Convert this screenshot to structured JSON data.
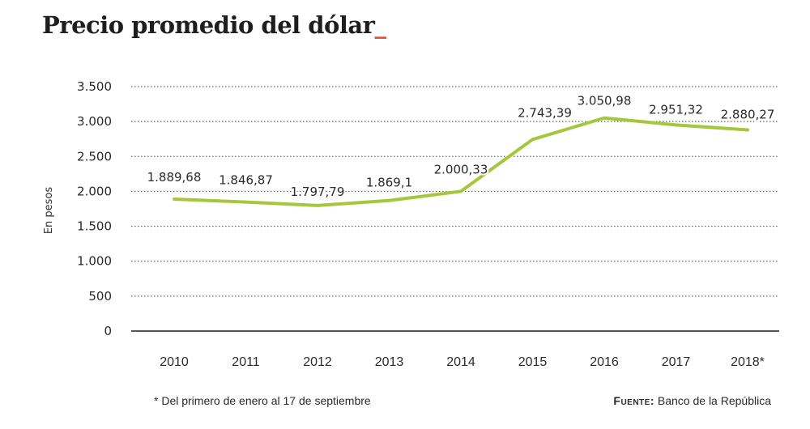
{
  "title": "Precio promedio del dólar",
  "title_accent": "_",
  "colors": {
    "line": "#a5c73e",
    "accent": "#e8542f",
    "grid": "#666666",
    "text": "#2a2a2a"
  },
  "footnote": "* Del primero de enero al 17 de septiembre",
  "source": {
    "label": "Fuente:",
    "value": " Banco de la República"
  },
  "chart_data": {
    "type": "line",
    "title": "Precio promedio del dólar",
    "xlabel": "",
    "ylabel": "En pesos",
    "categories": [
      "2010",
      "2011",
      "2012",
      "2013",
      "2014",
      "2015",
      "2016",
      "2017",
      "2018*"
    ],
    "series": [
      {
        "name": "Precio promedio del dólar",
        "values": [
          1889.68,
          1846.87,
          1797.79,
          1869.1,
          2000.33,
          2743.39,
          3050.98,
          2951.32,
          2880.27
        ],
        "labels": [
          "1.889,68",
          "1.846,87",
          "1.797,79",
          "1.869,1",
          "2.000,33",
          "2.743,39",
          "3.050,98",
          "2.951,32",
          "2.880,27"
        ]
      }
    ],
    "ylim": [
      0,
      3500
    ],
    "yticks": [
      0,
      500,
      1000,
      1500,
      2000,
      2500,
      3000,
      3500
    ],
    "ytick_labels": [
      "0",
      "500",
      "1.000",
      "1.500",
      "2.000",
      "2.500",
      "3.000",
      "3.500"
    ],
    "grid": true,
    "legend": "none"
  }
}
